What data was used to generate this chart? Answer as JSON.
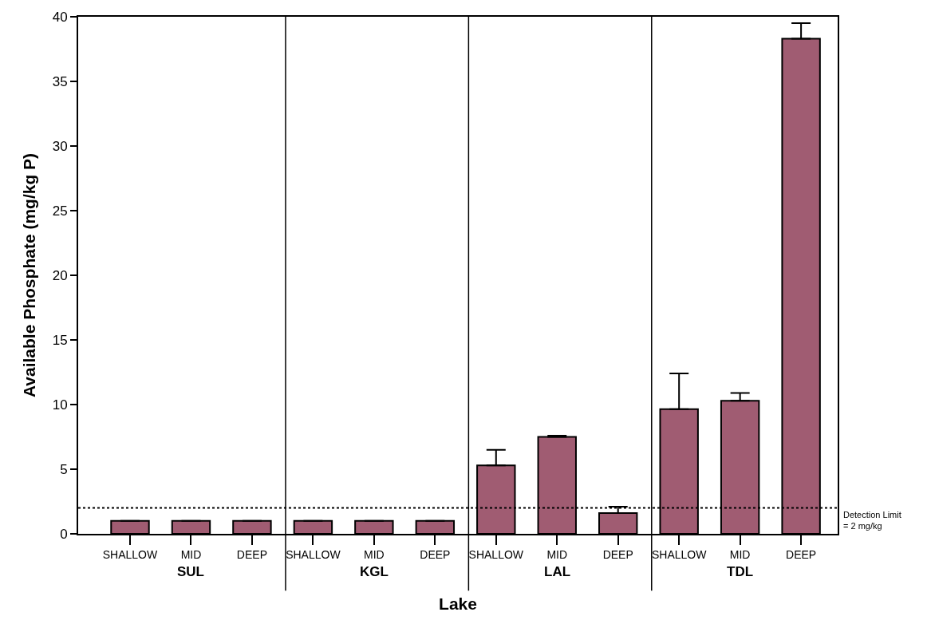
{
  "chart_data": {
    "type": "bar",
    "xlabel": "Lake",
    "ylabel": "Available Phosphate (mg/kg P)",
    "categories": [
      "SHALLOW",
      "MID",
      "DEEP",
      "SHALLOW",
      "MID",
      "DEEP",
      "SHALLOW",
      "MID",
      "DEEP",
      "SHALLOW",
      "MID",
      "DEEP"
    ],
    "values": [
      1,
      1,
      1,
      1,
      1,
      1,
      5.3,
      7.5,
      1.6,
      9.65,
      10.3,
      38.3
    ],
    "errors": [
      null,
      null,
      null,
      null,
      null,
      null,
      [
        5.3,
        6.5
      ],
      [
        7.5,
        7.6
      ],
      [
        1.6,
        2.1
      ],
      [
        9.65,
        12.4
      ],
      [
        10.3,
        10.9
      ],
      [
        38.3,
        39.5
      ]
    ],
    "color": "#a05c72",
    "ylim": [
      0,
      40
    ],
    "yticks": [
      0,
      5,
      10,
      15,
      20,
      25,
      30,
      35,
      40
    ],
    "ref_lines": [
      {
        "axis": "y",
        "value": 2,
        "label": "Detection Limit\n= 2 mg/kg",
        "color": "#000000",
        "line_style": "dotted"
      }
    ],
    "annotations": [
      "SUL",
      "KGL",
      "LAL",
      "TDL"
    ]
  }
}
